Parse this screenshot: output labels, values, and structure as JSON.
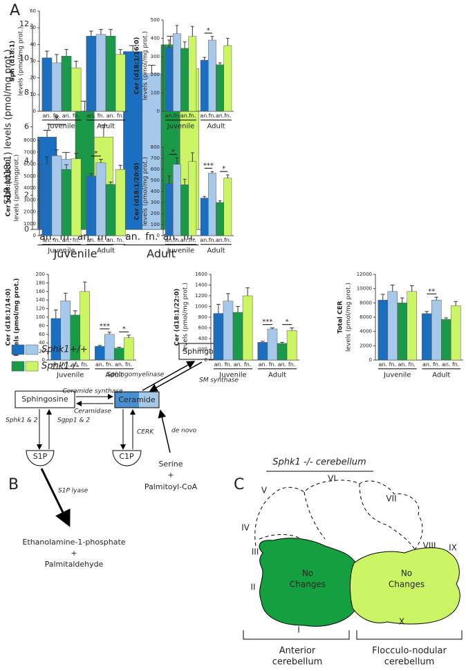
{
  "panel_labels": [
    "A",
    "B",
    "C"
  ],
  "chart_data": [
    {
      "type": "bar",
      "ylabel": [
        "S1P (d18:1) levels (pmol/mg prot.)"
      ],
      "categories": [
        "Juvenile",
        "Adult"
      ],
      "ylim": [
        0,
        12
      ],
      "yticks": [
        0,
        2,
        4,
        6,
        8,
        10,
        12
      ],
      "series": [
        {
          "name": "an.",
          "color": "#1a6fc0",
          "values": [
            5.4,
            10.4
          ],
          "errors": [
            0.4,
            0.35
          ],
          "sig_labels": [
            "*",
            null
          ]
        },
        {
          "name": "fn.",
          "color": "#a6c8ea",
          "values": [
            4.1,
            9.1
          ],
          "errors": [
            0.4,
            0.5
          ],
          "sig_labels": [
            null,
            null
          ]
        },
        {
          "name": "an.",
          "color": "#1a9a48",
          "values": [
            6.9,
            10.8
          ],
          "errors": [
            0.6,
            0.5
          ],
          "sig_labels": [
            null,
            null
          ]
        },
        {
          "name": "fn.",
          "color": "#ccf565",
          "values": [
            5.4,
            9.4
          ],
          "errors": [
            0.7,
            0.6
          ],
          "sig_labels": [
            null,
            null
          ]
        }
      ]
    },
    {
      "type": "bar",
      "ylabel": [
        "Sph (d18:1)",
        "levels (pmol/mg prot.)"
      ],
      "categories": [
        "Juvenile",
        "Adult"
      ],
      "ylim": [
        0,
        60
      ],
      "yticks": [
        0,
        10,
        20,
        30,
        40,
        50,
        60
      ],
      "series": [
        {
          "name": "an.",
          "color": "#1a6fc0",
          "values": [
            32,
            45
          ],
          "errors": [
            4,
            3
          ],
          "sig_labels": [
            null,
            null
          ]
        },
        {
          "name": "fn.",
          "color": "#a6c8ea",
          "values": [
            29,
            46
          ],
          "errors": [
            5,
            3
          ],
          "sig_labels": [
            null,
            null
          ]
        },
        {
          "name": "an.",
          "color": "#1a9a48",
          "values": [
            33,
            45
          ],
          "errors": [
            4,
            4
          ],
          "sig_labels": [
            null,
            null
          ]
        },
        {
          "name": "fn.",
          "color": "#ccf565",
          "values": [
            26,
            34
          ],
          "errors": [
            4,
            3
          ],
          "sig_labels": [
            null,
            null
          ]
        }
      ]
    },
    {
      "type": "bar",
      "ylabel": [
        "Cer (d18:1/16:0)",
        "levels (pmol/mg prot.)"
      ],
      "categories": [
        "Juvenile",
        "Adult"
      ],
      "ylim": [
        0,
        500
      ],
      "yticks": [
        0,
        100,
        200,
        300,
        400,
        500
      ],
      "series": [
        {
          "name": "an.",
          "color": "#1a6fc0",
          "values": [
            350,
            280
          ],
          "errors": [
            40,
            15
          ],
          "sig_labels": [
            null,
            "*"
          ]
        },
        {
          "name": "fn.",
          "color": "#a6c8ea",
          "values": [
            425,
            390
          ],
          "errors": [
            45,
            20
          ],
          "sig_labels": [
            null,
            null
          ]
        },
        {
          "name": "an.",
          "color": "#1a9a48",
          "values": [
            345,
            255
          ],
          "errors": [
            35,
            10
          ],
          "sig_labels": [
            null,
            null
          ]
        },
        {
          "name": "fn.",
          "color": "#ccf565",
          "values": [
            410,
            360
          ],
          "errors": [
            55,
            40
          ],
          "sig_labels": [
            null,
            null
          ]
        }
      ]
    },
    {
      "type": "bar",
      "ylabel": [
        "Cer (d18:1/18:0)",
        "levels (pmol/mgprot.)"
      ],
      "categories": [
        "Juvenile",
        "Adult"
      ],
      "ylim": [
        0,
        8000
      ],
      "yticks": [
        0,
        1000,
        2000,
        3000,
        4000,
        5000,
        6000,
        7000,
        8000
      ],
      "series": [
        {
          "name": "an.",
          "color": "#1a6fc0",
          "values": [
            6000,
            5000
          ],
          "errors": [
            600,
            200
          ],
          "sig_labels": [
            null,
            "*"
          ]
        },
        {
          "name": "fn.",
          "color": "#a6c8ea",
          "values": [
            6700,
            6100
          ],
          "errors": [
            500,
            300
          ],
          "sig_labels": [
            null,
            null
          ]
        },
        {
          "name": "an.",
          "color": "#1a9a48",
          "values": [
            5550,
            4300
          ],
          "errors": [
            400,
            200
          ],
          "sig_labels": [
            null,
            null
          ]
        },
        {
          "name": "fn.",
          "color": "#ccf565",
          "values": [
            6450,
            5550
          ],
          "errors": [
            450,
            350
          ],
          "sig_labels": [
            null,
            null
          ]
        }
      ]
    },
    {
      "type": "bar",
      "ylabel": [
        "Cer (d18:1/20:0)",
        "levels (pmol/mg prot.)"
      ],
      "categories": [
        "Juvenile",
        "Adult"
      ],
      "ylim": [
        0,
        800
      ],
      "yticks": [
        0,
        100,
        200,
        300,
        400,
        500,
        600,
        700,
        800
      ],
      "series": [
        {
          "name": "an.",
          "color": "#1a6fc0",
          "values": [
            470,
            340
          ],
          "errors": [
            70,
            15
          ],
          "sig_labels": [
            "*",
            "***"
          ]
        },
        {
          "name": "fn.",
          "color": "#a6c8ea",
          "values": [
            645,
            565
          ],
          "errors": [
            60,
            15
          ],
          "sig_labels": [
            null,
            null
          ]
        },
        {
          "name": "an.",
          "color": "#1a9a48",
          "values": [
            460,
            300
          ],
          "errors": [
            50,
            15
          ],
          "sig_labels": [
            null,
            "*"
          ]
        },
        {
          "name": "fn.",
          "color": "#ccf565",
          "values": [
            670,
            520
          ],
          "errors": [
            80,
            30
          ],
          "sig_labels": [
            null,
            null
          ]
        }
      ]
    },
    {
      "type": "bar",
      "ylabel": [
        "Cer (d18:1/14:0)",
        "levels (pmol/mg prot.)"
      ],
      "categories": [
        "Juvenile",
        "Adult"
      ],
      "ylim": [
        0,
        200
      ],
      "yticks": [
        0,
        20,
        40,
        60,
        80,
        100,
        120,
        140,
        160,
        180,
        200
      ],
      "series": [
        {
          "name": "an.",
          "color": "#1a6fc0",
          "values": [
            97,
            32
          ],
          "errors": [
            20,
            2
          ],
          "sig_labels": [
            null,
            "***"
          ]
        },
        {
          "name": "fn.",
          "color": "#a6c8ea",
          "values": [
            138,
            60
          ],
          "errors": [
            18,
            5
          ],
          "sig_labels": [
            null,
            null
          ]
        },
        {
          "name": "an.",
          "color": "#1a9a48",
          "values": [
            105,
            28
          ],
          "errors": [
            10,
            2
          ],
          "sig_labels": [
            null,
            "*"
          ]
        },
        {
          "name": "fn.",
          "color": "#ccf565",
          "values": [
            160,
            52
          ],
          "errors": [
            22,
            6
          ],
          "sig_labels": [
            null,
            null
          ]
        }
      ]
    },
    {
      "type": "bar",
      "ylabel": [
        "Cer (d18:1/22:0)",
        "levels (pmol/mg prot.)"
      ],
      "categories": [
        "Juvenile",
        "Adult"
      ],
      "ylim": [
        0,
        1600
      ],
      "yticks": [
        0,
        200,
        400,
        600,
        800,
        1000,
        1200,
        1400,
        1600
      ],
      "series": [
        {
          "name": "an.",
          "color": "#1a6fc0",
          "values": [
            870,
            330
          ],
          "errors": [
            170,
            20
          ],
          "sig_labels": [
            null,
            "***"
          ]
        },
        {
          "name": "fn.",
          "color": "#a6c8ea",
          "values": [
            1100,
            580
          ],
          "errors": [
            140,
            20
          ],
          "sig_labels": [
            null,
            null
          ]
        },
        {
          "name": "an.",
          "color": "#1a9a48",
          "values": [
            890,
            310
          ],
          "errors": [
            110,
            20
          ],
          "sig_labels": [
            null,
            "*"
          ]
        },
        {
          "name": "fn.",
          "color": "#ccf565",
          "values": [
            1200,
            550
          ],
          "errors": [
            150,
            50
          ],
          "sig_labels": [
            null,
            null
          ]
        }
      ]
    },
    {
      "type": "bar",
      "ylabel": [
        "Total CER",
        "levels (pmol/mg prot.)"
      ],
      "categories": [
        "Juvenile",
        "Adult"
      ],
      "ylim": [
        0,
        12000
      ],
      "yticks": [
        0,
        2000,
        4000,
        6000,
        8000,
        10000,
        12000
      ],
      "series": [
        {
          "name": "an.",
          "color": "#1a6fc0",
          "values": [
            8400,
            6500
          ],
          "errors": [
            800,
            300
          ],
          "sig_labels": [
            null,
            "**"
          ]
        },
        {
          "name": "fn.",
          "color": "#a6c8ea",
          "values": [
            9600,
            8400
          ],
          "errors": [
            900,
            400
          ],
          "sig_labels": [
            null,
            null
          ]
        },
        {
          "name": "an.",
          "color": "#1a9a48",
          "values": [
            8000,
            5700
          ],
          "errors": [
            700,
            200
          ],
          "sig_labels": [
            null,
            null
          ]
        },
        {
          "name": "fn.",
          "color": "#ccf565",
          "values": [
            9600,
            7600
          ],
          "errors": [
            800,
            600
          ],
          "sig_labels": [
            null,
            null
          ]
        }
      ]
    }
  ],
  "legend": {
    "entries": [
      {
        "name": "Sphk1+/+",
        "colors": [
          "#1a6fc0",
          "#a6c8ea"
        ]
      },
      {
        "name": "Sphk1-/-",
        "colors": [
          "#1a9a48",
          "#ccf565"
        ]
      }
    ]
  },
  "pathway": {
    "nodes": [
      "Sphingomyelin",
      "Sphingosine",
      "Ceramide",
      "S1P",
      "C1P"
    ],
    "enzymes": [
      "Sphingomyelinase",
      "SM synthase",
      "Ceramide synthase",
      "Ceramidase",
      "Sphk1 & 2",
      "Sgpp1 & 2",
      "CERK",
      "de novo",
      "S1P lyase"
    ],
    "substrates": [
      "Serine",
      "+",
      "Palmitoyl-CoA"
    ],
    "products": [
      "Ethanolamine-1-phosphate",
      "+",
      "Palmitaldehyde"
    ]
  },
  "cerebellum": {
    "title": "Sphk1 -/- cerebellum",
    "lobes": [
      "I",
      "II",
      "III",
      "IV",
      "V",
      "VI",
      "VII",
      "VIII",
      "IX",
      "X"
    ],
    "regions": [
      [
        "No",
        "Changes"
      ],
      [
        "No",
        "Changes"
      ]
    ],
    "divisions": [
      [
        "Anterior",
        "cerebellum"
      ],
      [
        "Flocculo-nodular",
        "cerebellum"
      ]
    ]
  }
}
